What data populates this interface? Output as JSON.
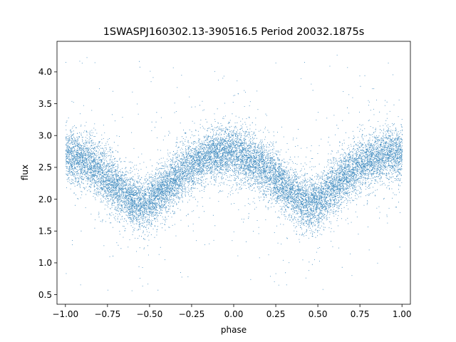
{
  "chart_data": {
    "type": "scatter",
    "title": "1SWASPJ160302.13-390516.5 Period 20032.1875s",
    "xlabel": "phase",
    "ylabel": "flux",
    "xlim": [
      -1.05,
      1.05
    ],
    "ylim": [
      0.35,
      4.48
    ],
    "x_ticks": [
      -1.0,
      -0.75,
      -0.5,
      -0.25,
      0.0,
      0.25,
      0.5,
      0.75,
      1.0
    ],
    "x_tick_labels": [
      "−1.00",
      "−0.75",
      "−0.50",
      "−0.25",
      "0.00",
      "0.25",
      "0.50",
      "0.75",
      "1.00"
    ],
    "y_ticks": [
      0.5,
      1.0,
      1.5,
      2.0,
      2.5,
      3.0,
      3.5,
      4.0
    ],
    "y_tick_labels": [
      "0.5",
      "1.0",
      "1.5",
      "2.0",
      "2.5",
      "3.0",
      "3.5",
      "4.0"
    ],
    "grid": false,
    "legend": "none",
    "point_color": "#1f77b4",
    "series": [
      {
        "phase_range": [
          -1.0,
          1.0
        ],
        "mean_curve": {
          "x": [
            -1.0,
            -0.9,
            -0.8,
            -0.7,
            -0.6,
            -0.55,
            -0.5,
            -0.4,
            -0.3,
            -0.2,
            -0.1,
            0.0,
            0.1,
            0.2,
            0.3,
            0.4,
            0.45,
            0.5,
            0.6,
            0.7,
            0.8,
            0.9,
            1.0
          ],
          "y": [
            2.68,
            2.62,
            2.45,
            2.2,
            1.98,
            1.92,
            1.97,
            2.2,
            2.45,
            2.62,
            2.72,
            2.74,
            2.62,
            2.45,
            2.2,
            1.98,
            1.92,
            1.97,
            2.2,
            2.45,
            2.62,
            2.72,
            2.74
          ]
        },
        "scatter_sigma": 0.2,
        "n_points": 16000,
        "outlier_range": [
          0.5,
          4.3
        ]
      }
    ]
  }
}
